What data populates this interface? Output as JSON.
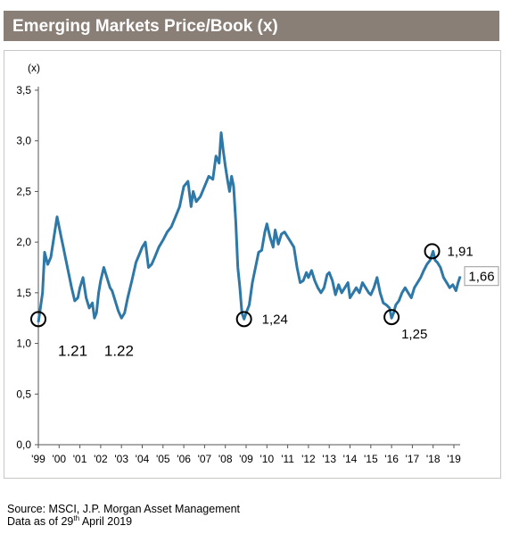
{
  "title": "Emerging Markets Price/Book (x)",
  "source": {
    "line1": "Source: MSCI, J.P. Morgan Asset Management",
    "line2_prefix": "Data as of 29",
    "line2_sup": "th",
    "line2_suffix": " April 2019"
  },
  "colors": {
    "line": "#2e78a8",
    "title_bg": "#8a7f77",
    "marker": "#000000"
  },
  "chart_data": {
    "type": "line",
    "title": "Emerging Markets Price/Book (x)",
    "ylabel": "(x)",
    "ylim": [
      0,
      3.5
    ],
    "yticks": [
      "0,0",
      "0,5",
      "1,0",
      "1,5",
      "2,0",
      "2,5",
      "3,0",
      "3,5"
    ],
    "xlim": [
      1999,
      2019.3
    ],
    "xticks": [
      "'99",
      "'00",
      "'01",
      "'02",
      "'03",
      "'04",
      "'05",
      "'06",
      "'07",
      "'08",
      "'09",
      "'10",
      "'11",
      "'12",
      "'13",
      "'14",
      "'15",
      "'16",
      "'17",
      "'18",
      "'19"
    ],
    "grid": false,
    "series": [
      {
        "x": [
          1999.0,
          1999.1,
          1999.2,
          1999.3,
          1999.45,
          1999.6,
          1999.75,
          1999.9,
          2000.0,
          2000.1,
          2000.2,
          2000.3,
          2000.45,
          2000.6,
          2000.75,
          2000.9,
          2001.0,
          2001.15,
          2001.3,
          2001.45,
          2001.6,
          2001.7,
          2001.8,
          2001.9,
          2002.0,
          2002.15,
          2002.3,
          2002.45,
          2002.55,
          2002.7,
          2002.85,
          2003.0,
          2003.15,
          2003.3,
          2003.5,
          2003.7,
          2003.9,
          2004.0,
          2004.15,
          2004.3,
          2004.45,
          2004.6,
          2004.8,
          2005.0,
          2005.2,
          2005.4,
          2005.6,
          2005.8,
          2006.0,
          2006.2,
          2006.35,
          2006.45,
          2006.6,
          2006.8,
          2007.0,
          2007.2,
          2007.4,
          2007.55,
          2007.7,
          2007.8,
          2007.9,
          2008.0,
          2008.1,
          2008.2,
          2008.3,
          2008.4,
          2008.5,
          2008.6,
          2008.7,
          2008.8,
          2008.9,
          2009.0,
          2009.15,
          2009.3,
          2009.45,
          2009.6,
          2009.75,
          2009.9,
          2010.0,
          2010.15,
          2010.3,
          2010.4,
          2010.55,
          2010.7,
          2010.85,
          2011.0,
          2011.15,
          2011.3,
          2011.45,
          2011.6,
          2011.75,
          2011.9,
          2012.0,
          2012.15,
          2012.3,
          2012.45,
          2012.6,
          2012.75,
          2012.9,
          2013.0,
          2013.15,
          2013.3,
          2013.45,
          2013.6,
          2013.75,
          2013.9,
          2014.0,
          2014.15,
          2014.3,
          2014.45,
          2014.6,
          2014.75,
          2014.9,
          2015.0,
          2015.15,
          2015.3,
          2015.45,
          2015.6,
          2015.75,
          2015.9,
          2016.0,
          2016.1,
          2016.2,
          2016.35,
          2016.5,
          2016.65,
          2016.8,
          2016.95,
          2017.1,
          2017.25,
          2017.4,
          2017.55,
          2017.7,
          2017.85,
          2018.0,
          2018.1,
          2018.2,
          2018.35,
          2018.5,
          2018.65,
          2018.8,
          2018.95,
          2019.1,
          2019.2,
          2019.3
        ],
        "values": [
          1.21,
          1.35,
          1.5,
          1.9,
          1.78,
          1.85,
          2.05,
          2.25,
          2.15,
          2.05,
          1.95,
          1.85,
          1.7,
          1.55,
          1.42,
          1.45,
          1.55,
          1.65,
          1.45,
          1.35,
          1.4,
          1.25,
          1.3,
          1.5,
          1.62,
          1.75,
          1.65,
          1.55,
          1.52,
          1.42,
          1.32,
          1.25,
          1.3,
          1.45,
          1.62,
          1.8,
          1.9,
          1.95,
          2.0,
          1.75,
          1.78,
          1.85,
          1.95,
          2.02,
          2.1,
          2.15,
          2.25,
          2.35,
          2.55,
          2.6,
          2.35,
          2.5,
          2.4,
          2.45,
          2.55,
          2.65,
          2.62,
          2.85,
          2.78,
          3.08,
          2.9,
          2.75,
          2.62,
          2.5,
          2.65,
          2.55,
          2.2,
          1.75,
          1.55,
          1.3,
          1.24,
          1.3,
          1.38,
          1.6,
          1.75,
          1.9,
          1.92,
          2.1,
          2.18,
          2.05,
          1.95,
          2.12,
          1.98,
          2.08,
          2.1,
          2.05,
          2.0,
          1.95,
          1.75,
          1.6,
          1.62,
          1.7,
          1.65,
          1.72,
          1.62,
          1.55,
          1.5,
          1.55,
          1.68,
          1.7,
          1.62,
          1.48,
          1.58,
          1.5,
          1.55,
          1.6,
          1.45,
          1.5,
          1.55,
          1.5,
          1.6,
          1.55,
          1.5,
          1.48,
          1.55,
          1.65,
          1.5,
          1.4,
          1.38,
          1.35,
          1.25,
          1.3,
          1.38,
          1.42,
          1.5,
          1.55,
          1.5,
          1.45,
          1.55,
          1.6,
          1.65,
          1.72,
          1.78,
          1.82,
          1.91,
          1.82,
          1.8,
          1.75,
          1.65,
          1.6,
          1.55,
          1.58,
          1.52,
          1.6,
          1.66
        ]
      }
    ],
    "annotations": [
      {
        "x": 1999.0,
        "y": 1.21,
        "label": "1.21",
        "circle_y": 1.24
      },
      {
        "x": 2002.9,
        "y": 1.22,
        "label": "1.22",
        "circle_y": null
      },
      {
        "x": 2008.9,
        "y": 1.24,
        "label": "1,24",
        "circle_y": 1.24
      },
      {
        "x": 2016.0,
        "y": 1.25,
        "label": "1,25",
        "circle_y": 1.26
      },
      {
        "x": 2017.95,
        "y": 1.91,
        "label": "1,91",
        "circle_y": 1.91
      },
      {
        "x": 2019.3,
        "y": 1.66,
        "label": "1,66",
        "circle_y": null
      }
    ]
  }
}
